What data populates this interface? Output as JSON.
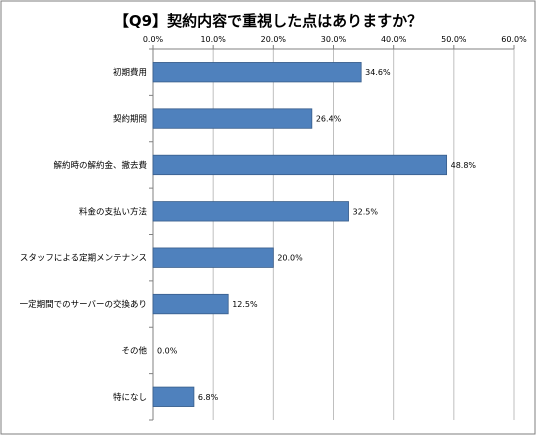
{
  "chart_data": {
    "type": "bar",
    "orientation": "horizontal",
    "title": "【Q9】契約内容で重視した点はありますか？",
    "categories": [
      "初期費用",
      "契約期間",
      "解約時の解約金、撤去費",
      "料金の支払い方法",
      "スタッフによる定期メンテナンス",
      "一定期間でのサーバーの交換あり",
      "その他",
      "特になし"
    ],
    "values": [
      34.6,
      26.4,
      48.8,
      32.5,
      20.0,
      12.5,
      0.0,
      6.8
    ],
    "data_labels": [
      "34.6%",
      "26.4%",
      "48.8%",
      "32.5%",
      "20.0%",
      "12.5%",
      "0.0%",
      "6.8%"
    ],
    "x_ticks": [
      0,
      10,
      20,
      30,
      40,
      50,
      60
    ],
    "x_tick_labels": [
      "0.0%",
      "10.0%",
      "20.0%",
      "30.0%",
      "40.0%",
      "50.0%",
      "60.0%"
    ],
    "xlim": [
      0,
      60
    ],
    "xlabel": "",
    "ylabel": "",
    "x_axis_position": "top",
    "grid": true,
    "legend": "none",
    "bar_color": "#4f81bd",
    "bar_edge_color": "#385d8a",
    "grid_color": "#bfbfbf",
    "border_color": "#7f7f7f"
  }
}
